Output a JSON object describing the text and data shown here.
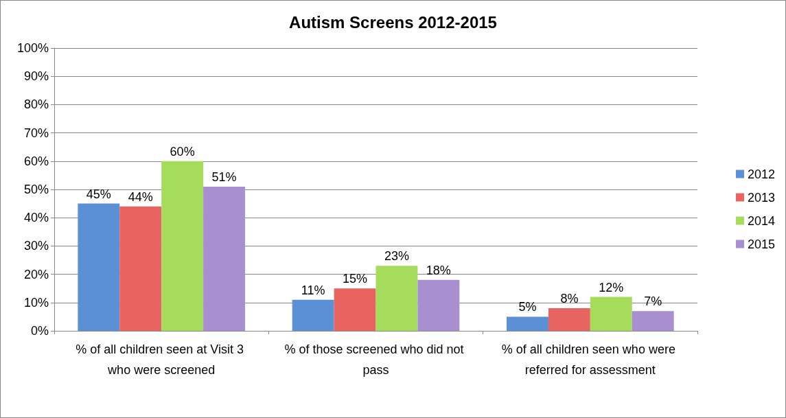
{
  "chart_data": {
    "type": "bar",
    "title": "Autism Screens 2012-2015",
    "categories": [
      "% of all children seen at Visit 3 who were screened",
      "% of those screened who did not pass",
      "% of all children seen who were referred for assessment"
    ],
    "series": [
      {
        "name": "2012",
        "color": "#5b8fd6",
        "values": [
          45,
          11,
          5
        ],
        "value_labels": [
          "45%",
          "11%",
          "5%"
        ]
      },
      {
        "name": "2013",
        "color": "#e86461",
        "values": [
          44,
          15,
          8
        ],
        "value_labels": [
          "44%",
          "15%",
          "8%"
        ]
      },
      {
        "name": "2014",
        "color": "#a6dc5c",
        "values": [
          60,
          23,
          12
        ],
        "value_labels": [
          "60%",
          "23%",
          "12%"
        ]
      },
      {
        "name": "2015",
        "color": "#a88fd0",
        "values": [
          51,
          18,
          7
        ],
        "value_labels": [
          "51%",
          "18%",
          "7%"
        ]
      }
    ],
    "ylim": [
      0,
      100
    ],
    "yticks": [
      {
        "value": 0,
        "label": "0%"
      },
      {
        "value": 10,
        "label": "10%"
      },
      {
        "value": 20,
        "label": "20%"
      },
      {
        "value": 30,
        "label": "30%"
      },
      {
        "value": 40,
        "label": "40%"
      },
      {
        "value": 50,
        "label": "50%"
      },
      {
        "value": 60,
        "label": "60%"
      },
      {
        "value": 70,
        "label": "70%"
      },
      {
        "value": 80,
        "label": "80%"
      },
      {
        "value": 90,
        "label": "90%"
      },
      {
        "value": 100,
        "label": "100%"
      }
    ],
    "grid": "y",
    "legend": "right"
  }
}
